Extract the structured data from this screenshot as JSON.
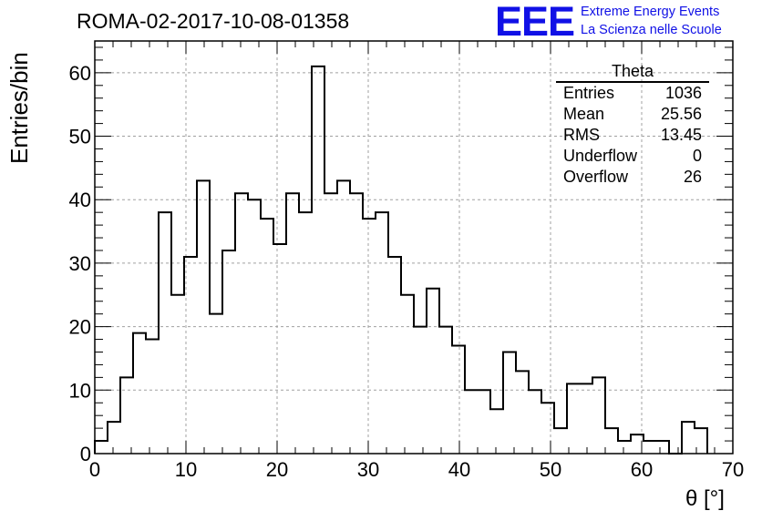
{
  "title": "ROMA-02-2017-10-08-01358",
  "logo": {
    "mark": "EEE",
    "line1": "Extreme Energy Events",
    "line2": "La Scienza nelle Scuole",
    "color": "#1010e6"
  },
  "stats": {
    "title": "Theta",
    "rows": [
      {
        "label": "Entries",
        "value": "1036"
      },
      {
        "label": "Mean",
        "value": "25.56"
      },
      {
        "label": "RMS",
        "value": "13.45"
      },
      {
        "label": "Underflow",
        "value": "0"
      },
      {
        "label": "Overflow",
        "value": "26"
      }
    ]
  },
  "chart_data": {
    "type": "bar",
    "style": "step-histogram",
    "xlabel": "θ [°]",
    "ylabel": "Entries/bin",
    "xlim": [
      0,
      70
    ],
    "ylim": [
      0,
      65
    ],
    "bin_width": 1.4,
    "x_ticks": [
      0,
      10,
      20,
      30,
      40,
      50,
      60,
      70
    ],
    "y_ticks": [
      0,
      10,
      20,
      30,
      40,
      50,
      60
    ],
    "grid": true,
    "values": [
      2,
      5,
      12,
      19,
      18,
      38,
      25,
      31,
      43,
      22,
      32,
      41,
      40,
      37,
      33,
      41,
      38,
      61,
      41,
      43,
      41,
      37,
      38,
      31,
      25,
      20,
      26,
      20,
      17,
      10,
      10,
      7,
      16,
      13,
      10,
      8,
      4,
      11,
      11,
      12,
      4,
      2,
      3,
      2,
      2,
      0,
      5,
      4
    ]
  }
}
